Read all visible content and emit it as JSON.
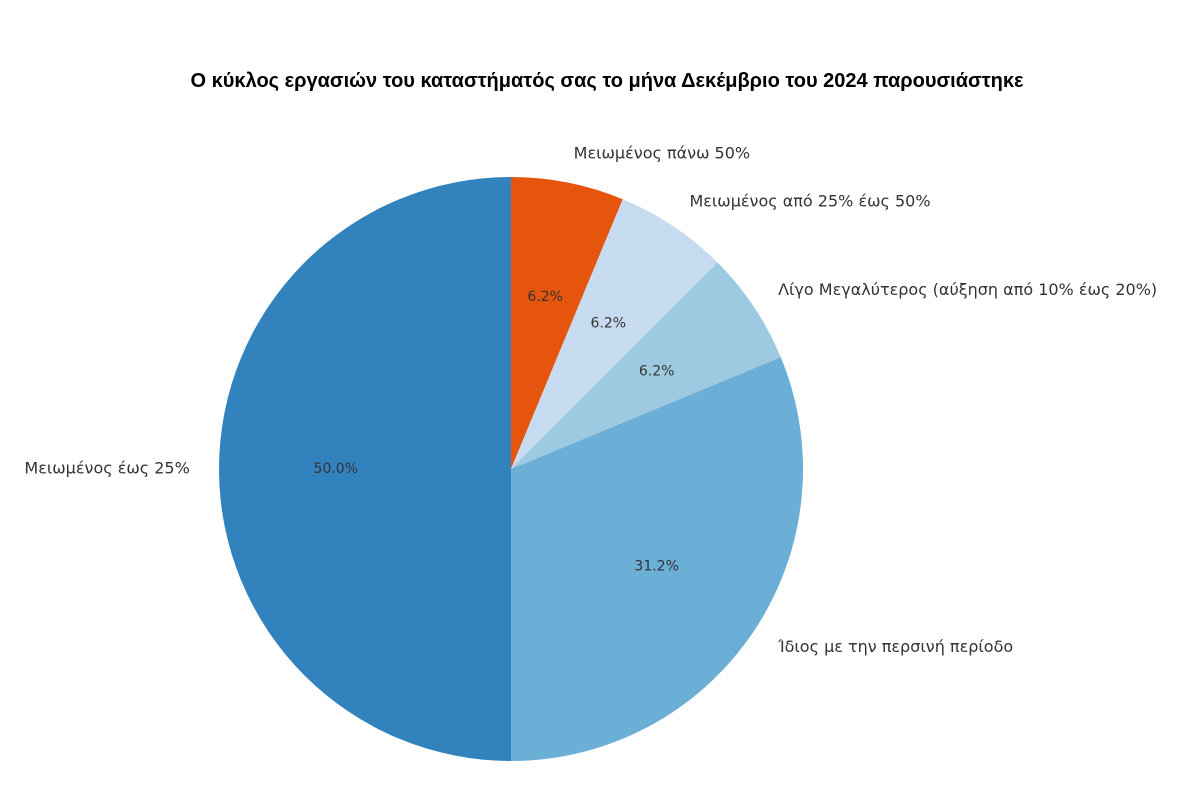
{
  "chart_data": {
    "type": "pie",
    "title": "Ο κύκλος εργασιών του καταστήματός σας το μήνα Δεκέμβριο του 2024 παρουσιάστηκε",
    "start_angle_deg": 90,
    "direction": "clockwise",
    "slices": [
      {
        "label": "Μειωμένος πάνω 50%",
        "value": 6.25,
        "pct_label": "6.2%",
        "color": "#e6550d"
      },
      {
        "label": "Μειωμένος από 25% έως 50%",
        "value": 6.25,
        "pct_label": "6.2%",
        "color": "#c6dbef"
      },
      {
        "label": "Λίγο Μεγαλύτερος (αύξηση από 10% έως 20%)",
        "value": 6.25,
        "pct_label": "6.2%",
        "color": "#9ecae1"
      },
      {
        "label": "Ίδιος με την περσινή περίοδο",
        "value": 31.25,
        "pct_label": "31.2%",
        "color": "#6baed6"
      },
      {
        "label": "Μειωμένος έως 25%",
        "value": 50.0,
        "pct_label": "50.0%",
        "color": "#3182bd"
      }
    ]
  }
}
